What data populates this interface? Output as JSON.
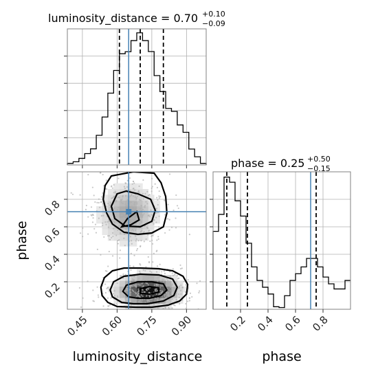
{
  "chart_data": {
    "type": "corner",
    "truth_color": "#4682b4",
    "parameters": [
      "luminosity_distance",
      "phase"
    ],
    "truths": {
      "luminosity_distance": 0.65,
      "phase": 0.71
    },
    "panels": {
      "luminosity_distance_hist": {
        "title": "luminosity_distance = 0.70",
        "title_sup": "+0.10",
        "title_sub": "−0.09",
        "xlim": [
          0.385,
          0.985
        ],
        "bin_edges": [
          0.385,
          0.41,
          0.435,
          0.46,
          0.485,
          0.51,
          0.535,
          0.56,
          0.585,
          0.61,
          0.635,
          0.66,
          0.685,
          0.71,
          0.735,
          0.76,
          0.785,
          0.81,
          0.835,
          0.86,
          0.885,
          0.91,
          0.935,
          0.96,
          0.985
        ],
        "counts": [
          0.8,
          1.6,
          3.3,
          5.7,
          8.1,
          14.9,
          24.1,
          36.1,
          47.5,
          55.9,
          56.9,
          62.5,
          66.4,
          62.5,
          57.0,
          44.9,
          36.9,
          28.4,
          26.9,
          20.1,
          16.4,
          8.0,
          4.1,
          0.8
        ],
        "quantiles": [
          0.61,
          0.7,
          0.8
        ]
      },
      "phase_hist": {
        "title": "phase = 0.25",
        "title_sup": "+0.50",
        "title_sub": "−0.15",
        "xlim": [
          0.0,
          1.0
        ],
        "bin_edges": [
          0.0,
          0.04,
          0.08,
          0.12,
          0.16,
          0.2,
          0.24,
          0.28,
          0.32,
          0.36,
          0.4,
          0.44,
          0.48,
          0.52,
          0.56,
          0.6,
          0.64,
          0.68,
          0.72,
          0.76,
          0.8,
          0.84,
          0.88,
          0.92,
          0.96,
          1.0
        ],
        "counts": [
          46,
          56,
          78,
          75,
          64,
          55,
          39,
          25,
          17,
          13,
          9,
          1.5,
          1,
          8,
          17,
          21,
          25,
          30,
          30,
          25,
          19,
          15,
          12,
          12,
          17
        ],
        "quantiles": [
          0.1,
          0.25,
          0.75
        ],
        "xticks": [
          0.2,
          0.4,
          0.6,
          0.8
        ],
        "xtick_labels": [
          "0.2",
          "0.4",
          "0.6",
          "0.8"
        ],
        "xlabel": "phase"
      },
      "joint": {
        "xlim": [
          0.385,
          0.985
        ],
        "ylim": [
          0.0,
          1.0
        ],
        "xticks": [
          0.45,
          0.6,
          0.75,
          0.9
        ],
        "xtick_labels": [
          "0.45",
          "0.60",
          "0.75",
          "0.90"
        ],
        "yticks": [
          0.2,
          0.4,
          0.6,
          0.8
        ],
        "ytick_labels": [
          "0.2",
          "0.4",
          "0.6",
          "0.8"
        ],
        "xlabel": "luminosity_distance",
        "ylabel": "phase",
        "modes": [
          {
            "x": 0.735,
            "y": 0.135,
            "intensity": 1.0
          },
          {
            "x": 0.65,
            "y": 0.69,
            "intensity": 0.35
          }
        ],
        "contours": [
          [
            [
              0.6,
              0.02
            ],
            [
              0.56,
              0.05
            ],
            [
              0.535,
              0.1
            ],
            [
              0.53,
              0.16
            ],
            [
              0.545,
              0.23
            ],
            [
              0.58,
              0.28
            ],
            [
              0.63,
              0.3
            ],
            [
              0.7,
              0.3
            ],
            [
              0.78,
              0.295
            ],
            [
              0.84,
              0.28
            ],
            [
              0.885,
              0.24
            ],
            [
              0.905,
              0.18
            ],
            [
              0.9,
              0.11
            ],
            [
              0.87,
              0.06
            ],
            [
              0.82,
              0.03
            ],
            [
              0.75,
              0.015
            ],
            [
              0.68,
              0.015
            ]
          ],
          [
            [
              0.62,
              0.05
            ],
            [
              0.58,
              0.09
            ],
            [
              0.57,
              0.14
            ],
            [
              0.585,
              0.2
            ],
            [
              0.63,
              0.24
            ],
            [
              0.7,
              0.255
            ],
            [
              0.78,
              0.25
            ],
            [
              0.84,
              0.22
            ],
            [
              0.86,
              0.16
            ],
            [
              0.845,
              0.1
            ],
            [
              0.8,
              0.06
            ],
            [
              0.73,
              0.04
            ],
            [
              0.67,
              0.04
            ]
          ],
          [
            [
              0.65,
              0.09
            ],
            [
              0.625,
              0.13
            ],
            [
              0.64,
              0.175
            ],
            [
              0.69,
              0.2
            ],
            [
              0.75,
              0.2
            ],
            [
              0.8,
              0.185
            ],
            [
              0.815,
              0.14
            ],
            [
              0.79,
              0.1
            ],
            [
              0.74,
              0.08
            ],
            [
              0.69,
              0.08
            ]
          ],
          [
            [
              0.7,
              0.115
            ],
            [
              0.7,
              0.15
            ],
            [
              0.74,
              0.165
            ],
            [
              0.78,
              0.155
            ],
            [
              0.78,
              0.125
            ],
            [
              0.74,
              0.11
            ]
          ],
          [
            [
              0.575,
              0.97
            ],
            [
              0.548,
              0.9
            ],
            [
              0.54,
              0.8
            ],
            [
              0.555,
              0.7
            ],
            [
              0.58,
              0.62
            ],
            [
              0.63,
              0.56
            ],
            [
              0.69,
              0.545
            ],
            [
              0.75,
              0.555
            ],
            [
              0.8,
              0.6
            ],
            [
              0.815,
              0.7
            ],
            [
              0.81,
              0.82
            ],
            [
              0.79,
              0.92
            ],
            [
              0.76,
              0.99
            ],
            [
              0.67,
              1.0
            ]
          ],
          [
            [
              0.6,
              0.84
            ],
            [
              0.575,
              0.75
            ],
            [
              0.59,
              0.66
            ],
            [
              0.635,
              0.605
            ],
            [
              0.7,
              0.6
            ],
            [
              0.75,
              0.64
            ],
            [
              0.765,
              0.72
            ],
            [
              0.745,
              0.8
            ],
            [
              0.69,
              0.84
            ],
            [
              0.64,
              0.86
            ]
          ],
          [
            [
              0.62,
              0.6
            ],
            [
              0.645,
              0.66
            ],
            [
              0.685,
              0.71
            ],
            [
              0.695,
              0.65
            ],
            [
              0.66,
              0.615
            ]
          ]
        ]
      }
    }
  }
}
